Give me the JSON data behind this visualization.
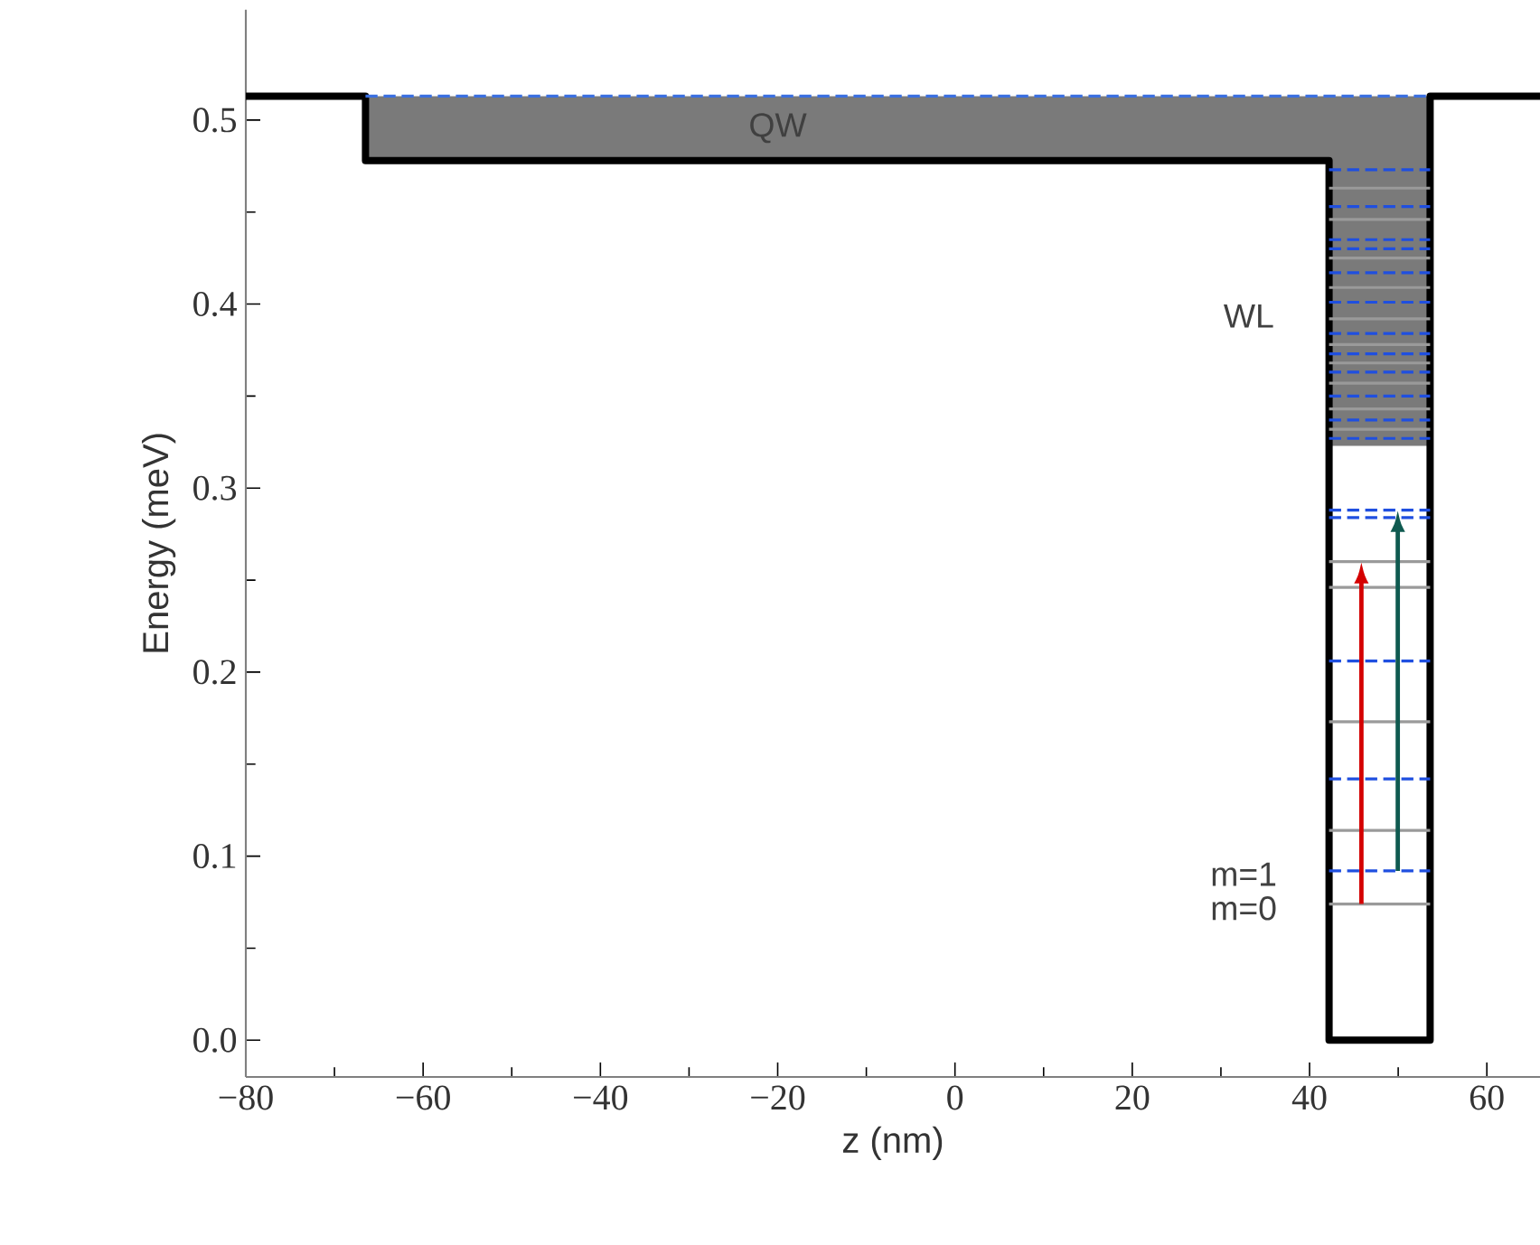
{
  "chart_data": {
    "type": "line",
    "xlabel": "z (nm)",
    "ylabel": "Energy (meV)",
    "xlim": [
      -80,
      66
    ],
    "ylim": [
      -0.02,
      0.56
    ],
    "xticks": [
      {
        "value": -80,
        "label": "−80"
      },
      {
        "value": -60,
        "label": "−60"
      },
      {
        "value": -40,
        "label": "−40"
      },
      {
        "value": -20,
        "label": "−20"
      },
      0,
      20,
      40,
      60
    ],
    "yticks": [
      {
        "value": 0,
        "label": "0.0"
      },
      0.1,
      0.2,
      0.3,
      0.4,
      0.5
    ],
    "grid": false,
    "marker": "none",
    "series": [
      {
        "color": "#000000",
        "line_style": "solid",
        "x": [
          -80,
          -66.5,
          -66.5,
          42.2,
          42.2,
          53.6,
          53.6,
          66
        ],
        "values": [
          0.513,
          0.513,
          0.478,
          0.478,
          0,
          0,
          0.513,
          0.513
        ]
      },
      {
        "color": "#3a6fe0",
        "line_style": "dashed",
        "x": [
          -66.5,
          42.2,
          42.2,
          53.6
        ],
        "values": [
          0.513,
          0.513,
          0.513,
          0.513
        ],
        "lower": [
          0.478,
          0.478,
          0.323,
          0.323
        ],
        "upper": [
          0.513,
          0.513,
          0.513,
          0.513
        ]
      },
      {
        "color": "#9a9a9a",
        "line_style": "solid",
        "x": [
          42.2,
          53.6
        ],
        "values": [
          0.463,
          0.463
        ]
      },
      {
        "color": "#9a9a9a",
        "line_style": "solid",
        "x": [
          42.2,
          53.6
        ],
        "values": [
          0.446,
          0.446
        ]
      },
      {
        "color": "#9a9a9a",
        "line_style": "solid",
        "x": [
          42.2,
          53.6
        ],
        "values": [
          0.425,
          0.425
        ]
      },
      {
        "color": "#9a9a9a",
        "line_style": "solid",
        "x": [
          42.2,
          53.6
        ],
        "values": [
          0.409,
          0.409
        ]
      },
      {
        "color": "#9a9a9a",
        "line_style": "solid",
        "x": [
          42.2,
          53.6
        ],
        "values": [
          0.392,
          0.392
        ]
      },
      {
        "color": "#9a9a9a",
        "line_style": "solid",
        "x": [
          42.2,
          53.6
        ],
        "values": [
          0.378,
          0.378
        ]
      },
      {
        "color": "#9a9a9a",
        "line_style": "solid",
        "x": [
          42.2,
          53.6
        ],
        "values": [
          0.368,
          0.368
        ]
      },
      {
        "color": "#9a9a9a",
        "line_style": "solid",
        "x": [
          42.2,
          53.6
        ],
        "values": [
          0.357,
          0.357
        ]
      },
      {
        "color": "#9a9a9a",
        "line_style": "solid",
        "x": [
          42.2,
          53.6
        ],
        "values": [
          0.343,
          0.343
        ]
      },
      {
        "color": "#9a9a9a",
        "line_style": "solid",
        "x": [
          42.2,
          53.6
        ],
        "values": [
          0.332,
          0.332
        ]
      },
      {
        "color": "#9a9a9a",
        "line_style": "solid",
        "x": [
          42.2,
          53.6
        ],
        "values": [
          0.26,
          0.26
        ]
      },
      {
        "color": "#9a9a9a",
        "line_style": "solid",
        "x": [
          42.2,
          53.6
        ],
        "values": [
          0.246,
          0.246
        ]
      },
      {
        "color": "#9a9a9a",
        "line_style": "solid",
        "x": [
          42.2,
          53.6
        ],
        "values": [
          0.173,
          0.173
        ]
      },
      {
        "color": "#9a9a9a",
        "line_style": "solid",
        "x": [
          42.2,
          53.6
        ],
        "values": [
          0.114,
          0.114
        ]
      },
      {
        "color": "#9a9a9a",
        "line_style": "solid",
        "x": [
          42.2,
          53.6
        ],
        "values": [
          0.074,
          0.074
        ]
      },
      {
        "color": "#1f4fe0",
        "line_style": "dashed",
        "x": [
          42.2,
          53.6
        ],
        "values": [
          0.473,
          0.473
        ]
      },
      {
        "color": "#1f4fe0",
        "line_style": "dashed",
        "x": [
          42.2,
          53.6
        ],
        "values": [
          0.453,
          0.453
        ]
      },
      {
        "color": "#1f4fe0",
        "line_style": "dashed",
        "x": [
          42.2,
          53.6
        ],
        "values": [
          0.435,
          0.435
        ]
      },
      {
        "color": "#1f4fe0",
        "line_style": "dashed",
        "x": [
          42.2,
          53.6
        ],
        "values": [
          0.43,
          0.43
        ]
      },
      {
        "color": "#1f4fe0",
        "line_style": "dashed",
        "x": [
          42.2,
          53.6
        ],
        "values": [
          0.417,
          0.417
        ]
      },
      {
        "color": "#1f4fe0",
        "line_style": "dashed",
        "x": [
          42.2,
          53.6
        ],
        "values": [
          0.401,
          0.401
        ]
      },
      {
        "color": "#1f4fe0",
        "line_style": "dashed",
        "x": [
          42.2,
          53.6
        ],
        "values": [
          0.384,
          0.384
        ]
      },
      {
        "color": "#1f4fe0",
        "line_style": "dashed",
        "x": [
          42.2,
          53.6
        ],
        "values": [
          0.373,
          0.373
        ]
      },
      {
        "color": "#1f4fe0",
        "line_style": "dashed",
        "x": [
          42.2,
          53.6
        ],
        "values": [
          0.363,
          0.363
        ]
      },
      {
        "color": "#1f4fe0",
        "line_style": "dashed",
        "x": [
          42.2,
          53.6
        ],
        "values": [
          0.35,
          0.35
        ]
      },
      {
        "color": "#1f4fe0",
        "line_style": "dashed",
        "x": [
          42.2,
          53.6
        ],
        "values": [
          0.337,
          0.337
        ]
      },
      {
        "color": "#1f4fe0",
        "line_style": "dashed",
        "x": [
          42.2,
          53.6
        ],
        "values": [
          0.327,
          0.327
        ]
      },
      {
        "color": "#1f4fe0",
        "line_style": "dashed",
        "x": [
          42.2,
          53.6
        ],
        "values": [
          0.288,
          0.288
        ]
      },
      {
        "color": "#1f4fe0",
        "line_style": "dashed",
        "x": [
          42.2,
          53.6
        ],
        "values": [
          0.284,
          0.284
        ]
      },
      {
        "color": "#1f4fe0",
        "line_style": "dashed",
        "x": [
          42.2,
          53.6
        ],
        "values": [
          0.206,
          0.206
        ]
      },
      {
        "color": "#1f4fe0",
        "line_style": "dashed",
        "x": [
          42.2,
          53.6
        ],
        "values": [
          0.142,
          0.142
        ]
      },
      {
        "color": "#1f4fe0",
        "line_style": "dashed",
        "x": [
          42.2,
          53.6
        ],
        "values": [
          0.092,
          0.092
        ]
      }
    ],
    "annotations": [
      "QW",
      "WL",
      "m=1",
      "m=0"
    ]
  }
}
